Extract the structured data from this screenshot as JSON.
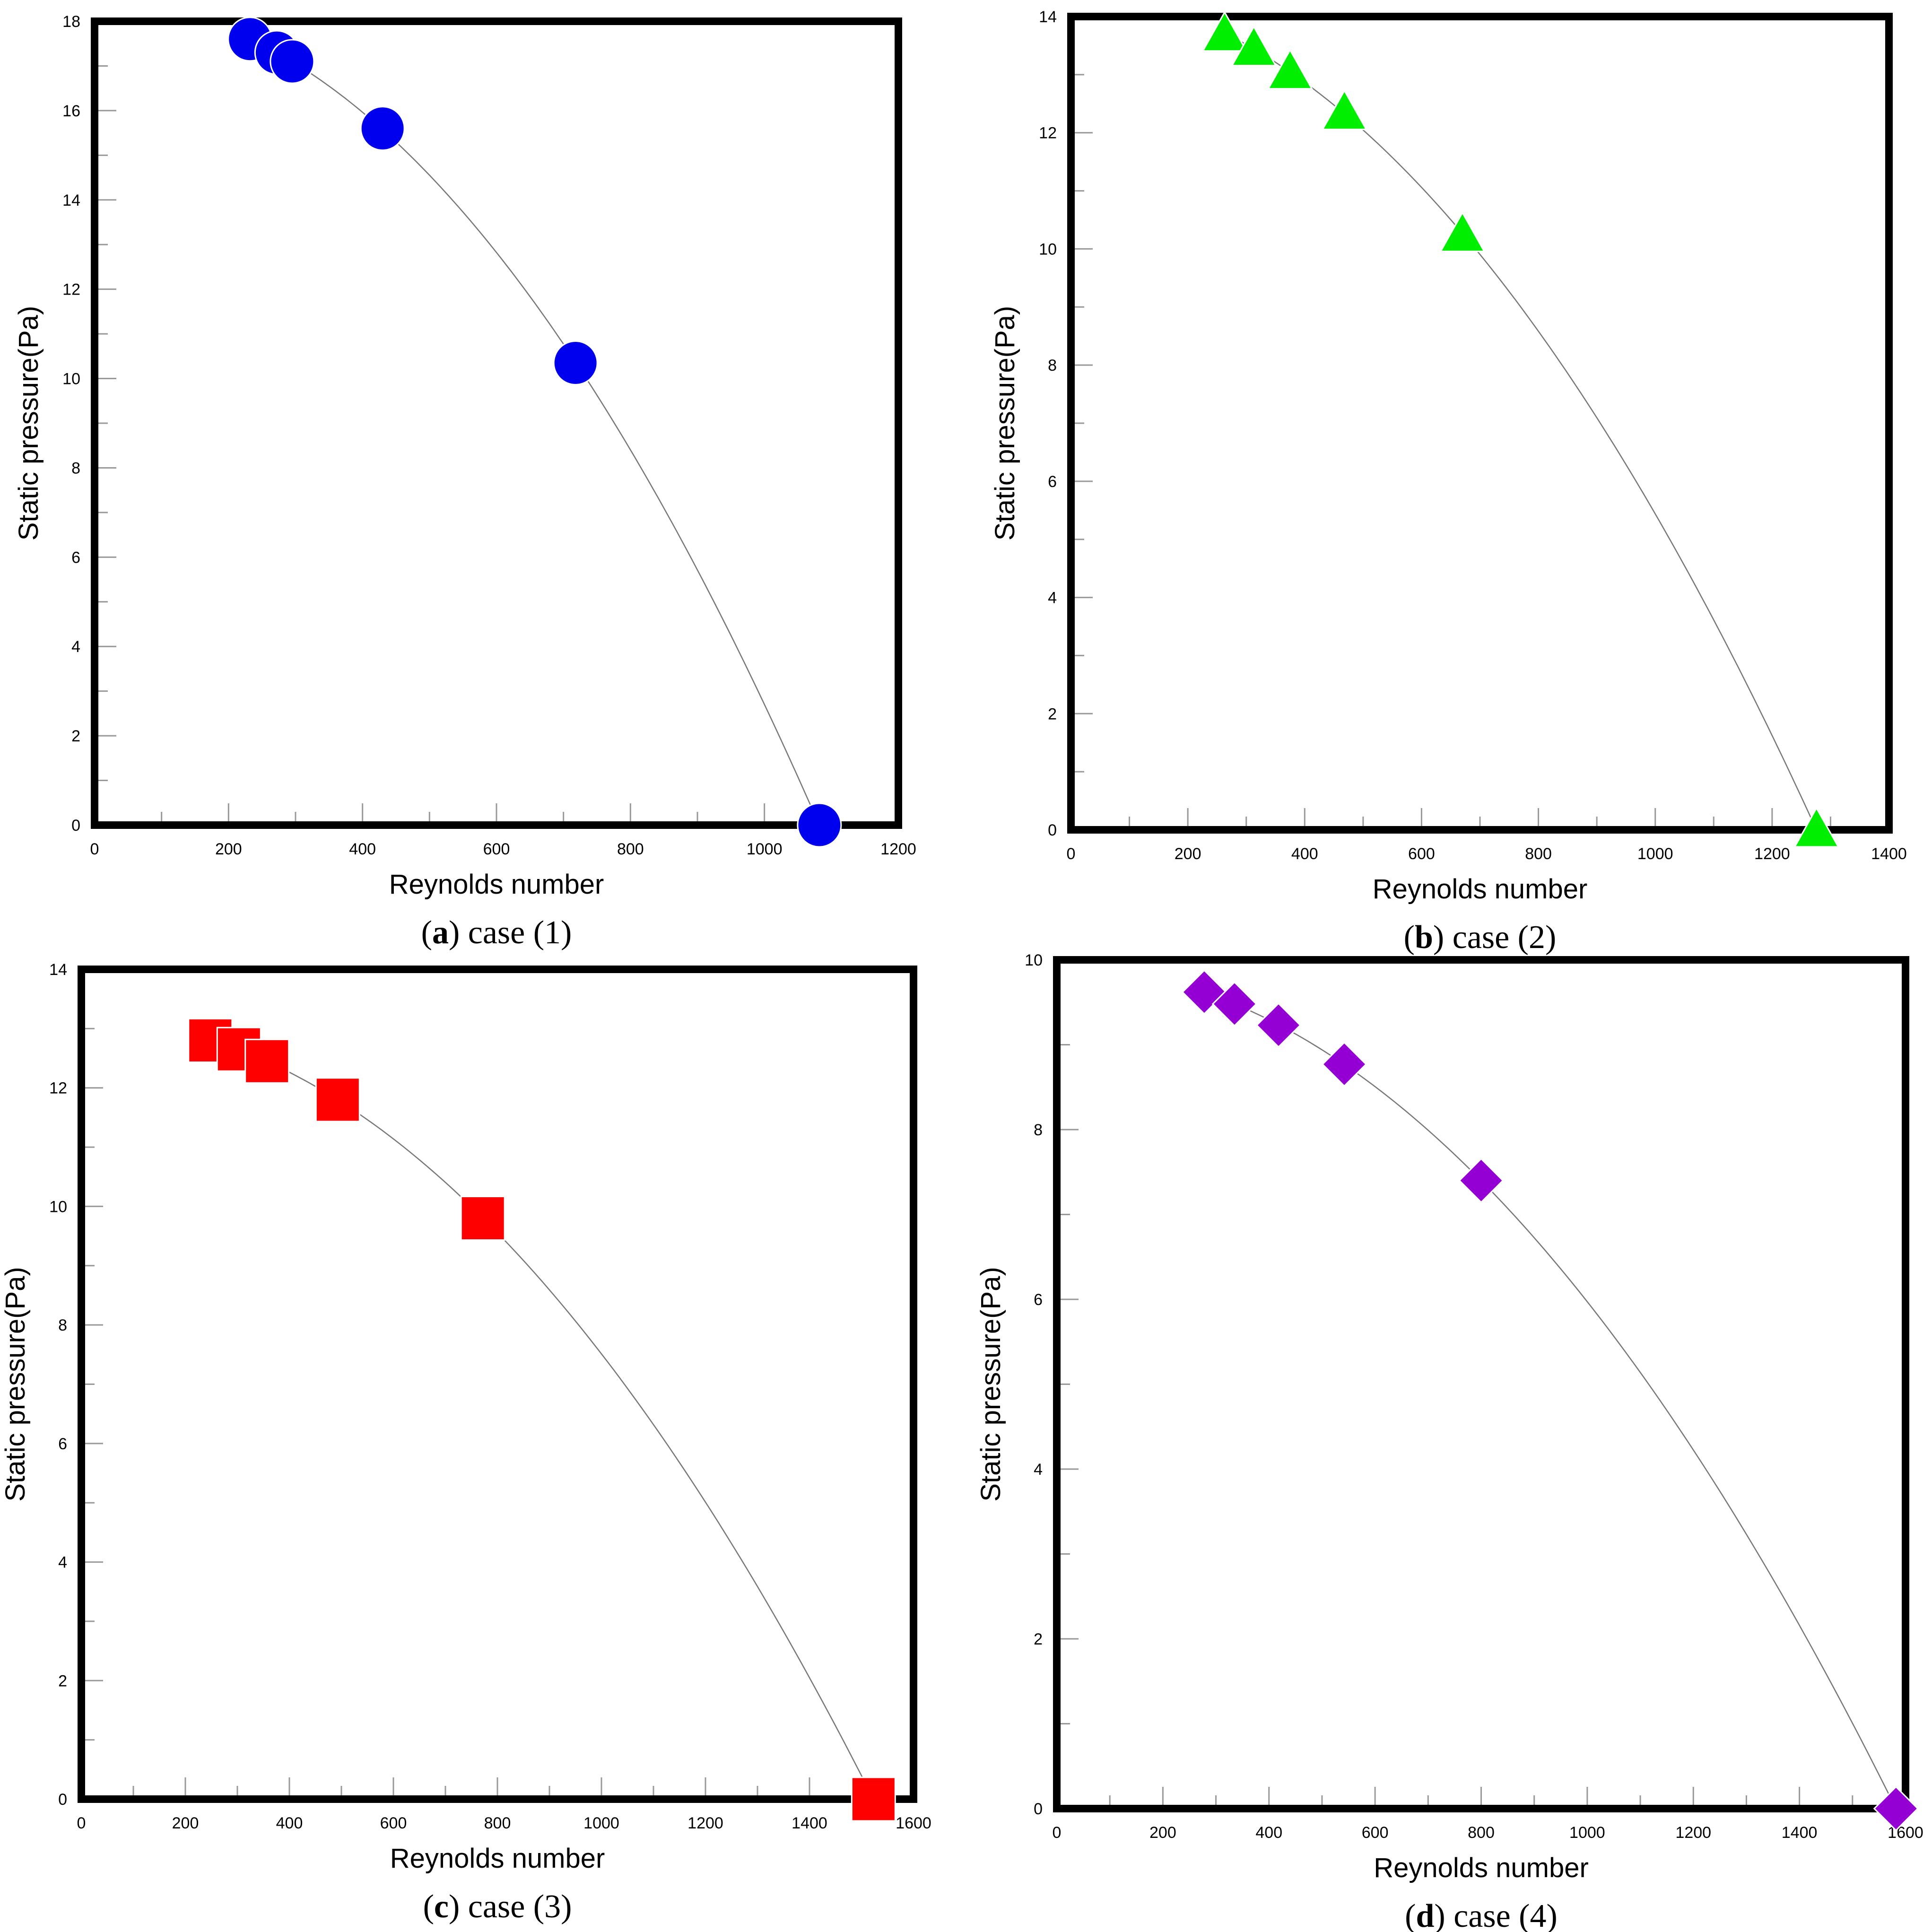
{
  "chart_data": [
    {
      "type": "scatter",
      "panel": "a",
      "caption_letter": "a",
      "caption_text": "case (1)",
      "xlabel": "Reynolds number",
      "ylabel": "Static pressure(Pa)",
      "xlim": [
        0,
        1200
      ],
      "ylim": [
        0,
        18
      ],
      "xticks": [
        0,
        200,
        400,
        600,
        800,
        1000,
        1200
      ],
      "yticks": [
        0,
        2,
        4,
        6,
        8,
        10,
        12,
        14,
        16,
        18
      ],
      "marker": "circle",
      "color": "#0000ee",
      "x": [
        232,
        272,
        295,
        430,
        718,
        1082
      ],
      "y": [
        17.6,
        17.3,
        17.1,
        15.6,
        10.35,
        0.0
      ],
      "fit_line": true
    },
    {
      "type": "scatter",
      "panel": "b",
      "caption_letter": "b",
      "caption_text": "case (2)",
      "xlabel": "Reynolds number",
      "ylabel": "Static pressure(Pa)",
      "xlim": [
        0,
        1400
      ],
      "ylim": [
        0,
        14
      ],
      "xticks": [
        0,
        200,
        400,
        600,
        800,
        1000,
        1200,
        1400
      ],
      "yticks": [
        0,
        2,
        4,
        6,
        8,
        10,
        12,
        14
      ],
      "marker": "triangle",
      "color": "#00ee00",
      "x": [
        263,
        313,
        375,
        468,
        670,
        1276
      ],
      "y": [
        13.7,
        13.45,
        13.05,
        12.35,
        10.25,
        0.0
      ],
      "fit_line": true
    },
    {
      "type": "scatter",
      "panel": "c",
      "caption_letter": "c",
      "caption_text": "case (3)",
      "xlabel": "Reynolds number",
      "ylabel": "Static pressure(Pa)",
      "xlim": [
        0,
        1600
      ],
      "ylim": [
        0,
        14
      ],
      "xticks": [
        0,
        200,
        400,
        600,
        800,
        1000,
        1200,
        1400,
        1600
      ],
      "yticks": [
        0,
        2,
        4,
        6,
        8,
        10,
        12,
        14
      ],
      "marker": "square",
      "color": "#ff0000",
      "x": [
        248,
        303,
        357,
        493,
        772,
        1523
      ],
      "y": [
        12.8,
        12.65,
        12.45,
        11.8,
        9.8,
        0.0
      ],
      "fit_line": true
    },
    {
      "type": "scatter",
      "panel": "d",
      "caption_letter": "d",
      "caption_text": "case (4)",
      "xlabel": "Reynolds number",
      "ylabel": "Static pressure(Pa)",
      "xlim": [
        0,
        1600
      ],
      "ylim": [
        0,
        10
      ],
      "xticks": [
        0,
        200,
        400,
        600,
        800,
        1000,
        1200,
        1400,
        1600
      ],
      "yticks": [
        0,
        2,
        4,
        6,
        8,
        10
      ],
      "marker": "diamond",
      "color": "#9400d3",
      "x": [
        278,
        335,
        418,
        542,
        800,
        1582
      ],
      "y": [
        9.62,
        9.48,
        9.23,
        8.77,
        7.4,
        0.0
      ],
      "fit_line": true
    }
  ]
}
